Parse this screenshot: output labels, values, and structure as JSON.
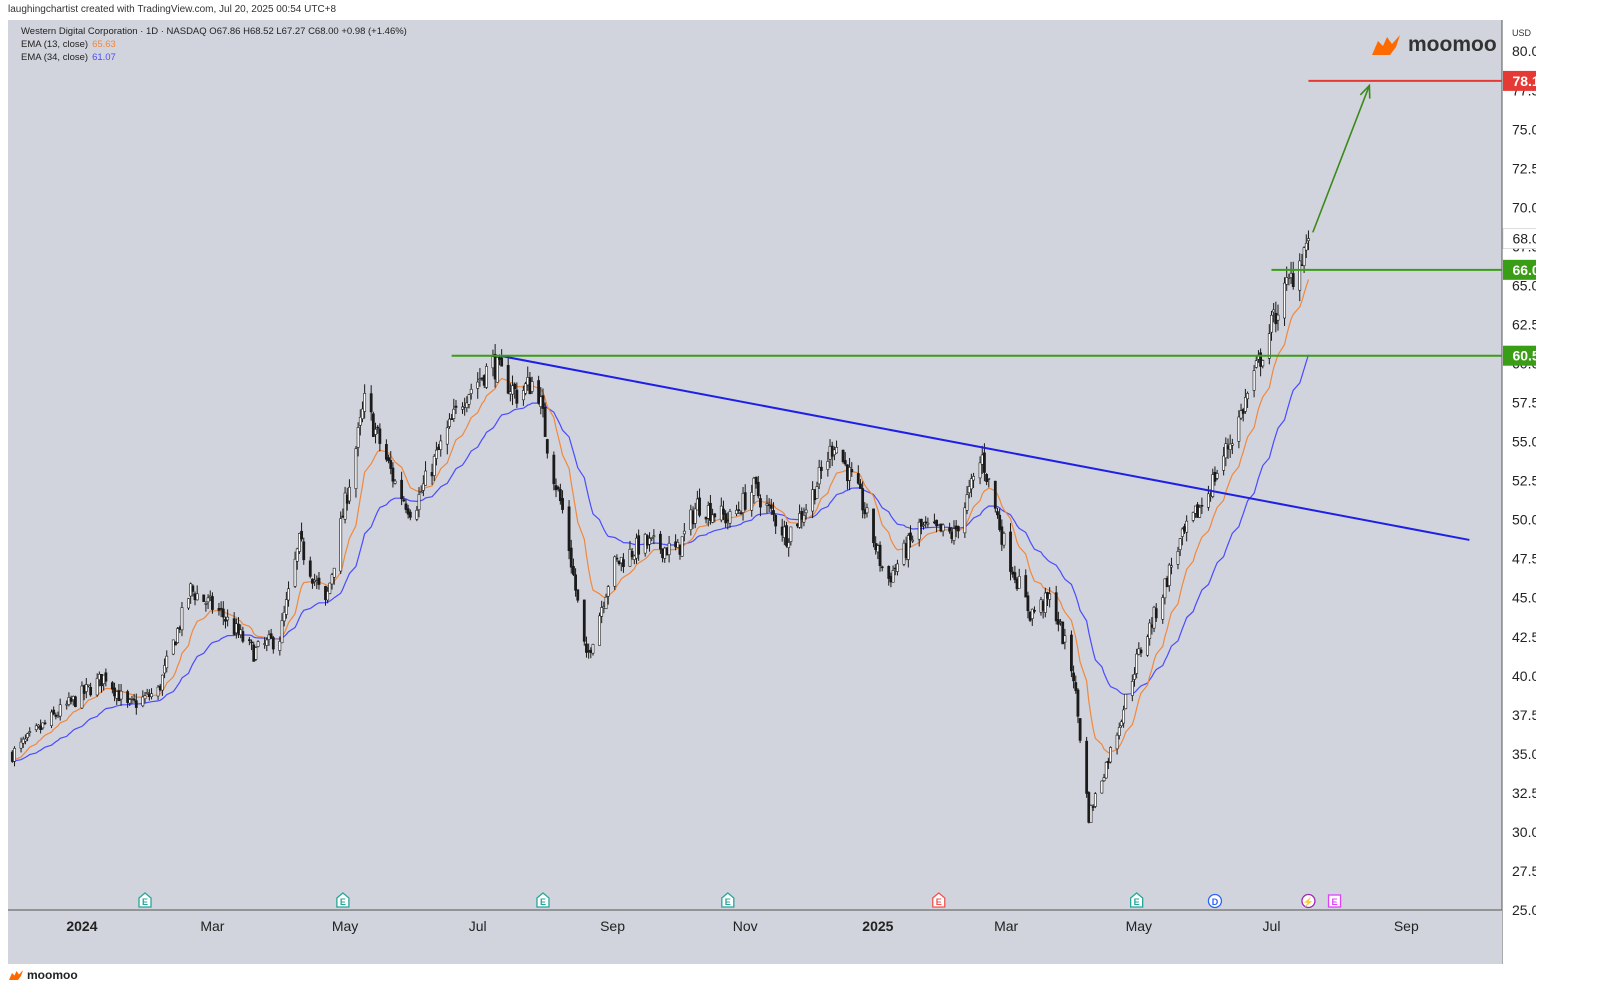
{
  "header": {
    "created_by": "laughingchartist created with TradingView.com, Jul 20, 2025 00:54 UTC+8"
  },
  "legend": {
    "symbol_line": "Western Digital Corporation · 1D · NASDAQ  O67.86  H68.52  L67.27  C68.00  +0.98 (+1.46%)",
    "ema13_label": "EMA (13, close)",
    "ema13_value": "65.63",
    "ema34_label": "EMA (34, close)",
    "ema34_value": "61.07"
  },
  "branding": {
    "top_logo": "moomoo",
    "bottom_logo": "moomoo"
  },
  "colors": {
    "background": "#d1d4dc",
    "candle": "#1a1a1a",
    "ema13": "#f0883e",
    "ema34": "#4b4bff",
    "resistance": "#e53935",
    "support": "#3a9d16",
    "trendline": "#1f1fe6",
    "target_arrow": "#3a8a1a",
    "moomoo_orange": "#ff6a00"
  },
  "chart_data": {
    "type": "candlestick",
    "currency": "USD",
    "ylim": [
      25,
      82
    ],
    "yticks": [
      25.0,
      27.5,
      30.0,
      32.5,
      35.0,
      37.5,
      40.0,
      42.5,
      45.0,
      47.5,
      50.0,
      52.5,
      55.0,
      57.5,
      60.0,
      62.5,
      65.0,
      67.5,
      70.0,
      72.5,
      75.0,
      77.5,
      80.0
    ],
    "yticks_text": [
      "25.00",
      "27.50",
      "30.00",
      "32.50",
      "35.00",
      "37.50",
      "40.00",
      "42.50",
      "45.00",
      "47.50",
      "50.00",
      "52.50",
      "55.00",
      "57.50",
      "60.00",
      "62.50",
      "65.00",
      "67.50",
      "70.00",
      "72.50",
      "75.00",
      "77.50",
      "80.00"
    ],
    "x_axis": [
      {
        "label": "2024",
        "date": "2024-01-01",
        "bold": true
      },
      {
        "label": "Mar",
        "date": "2024-03-01",
        "bold": false
      },
      {
        "label": "May",
        "date": "2024-05-01",
        "bold": false
      },
      {
        "label": "Jul",
        "date": "2024-07-01",
        "bold": false
      },
      {
        "label": "Sep",
        "date": "2024-09-01",
        "bold": false
      },
      {
        "label": "Nov",
        "date": "2024-11-01",
        "bold": false
      },
      {
        "label": "2025",
        "date": "2025-01-01",
        "bold": true
      },
      {
        "label": "Mar",
        "date": "2025-03-01",
        "bold": false
      },
      {
        "label": "May",
        "date": "2025-05-01",
        "bold": false
      },
      {
        "label": "Jul",
        "date": "2025-07-01",
        "bold": false
      },
      {
        "label": "Sep",
        "date": "2025-09-01",
        "bold": false
      }
    ],
    "x_range": [
      "2023-11-28",
      "2025-10-15"
    ],
    "price_path": [
      [
        "2023-11-30",
        35.0
      ],
      [
        "2023-12-20",
        37.5
      ],
      [
        "2024-01-12",
        40.0
      ],
      [
        "2024-01-22",
        38.0
      ],
      [
        "2024-02-05",
        39.0
      ],
      [
        "2024-02-20",
        45.5
      ],
      [
        "2024-03-05",
        44.0
      ],
      [
        "2024-03-20",
        41.5
      ],
      [
        "2024-04-01",
        42.5
      ],
      [
        "2024-04-10",
        48.5
      ],
      [
        "2024-04-22",
        44.5
      ],
      [
        "2024-05-10",
        57.5
      ],
      [
        "2024-05-25",
        52.0
      ],
      [
        "2024-06-01",
        50.5
      ],
      [
        "2024-06-15",
        55.0
      ],
      [
        "2024-06-25",
        58.0
      ],
      [
        "2024-07-08",
        60.0
      ],
      [
        "2024-07-19",
        58.0
      ],
      [
        "2024-07-28",
        59.0
      ],
      [
        "2024-08-03",
        54.0
      ],
      [
        "2024-08-10",
        50.0
      ],
      [
        "2024-08-20",
        41.0
      ],
      [
        "2024-09-01",
        47.0
      ],
      [
        "2024-09-15",
        48.5
      ],
      [
        "2024-10-01",
        48.0
      ],
      [
        "2024-10-10",
        51.0
      ],
      [
        "2024-10-25",
        50.0
      ],
      [
        "2024-11-05",
        52.0
      ],
      [
        "2024-11-20",
        49.0
      ],
      [
        "2024-11-30",
        51.0
      ],
      [
        "2024-12-12",
        55.0
      ],
      [
        "2024-12-25",
        51.0
      ],
      [
        "2025-01-05",
        46.0
      ],
      [
        "2025-01-20",
        49.5
      ],
      [
        "2025-02-05",
        49.0
      ],
      [
        "2025-02-18",
        54.0
      ],
      [
        "2025-03-01",
        48.0
      ],
      [
        "2025-03-12",
        44.0
      ],
      [
        "2025-03-22",
        45.0
      ],
      [
        "2025-04-01",
        40.0
      ],
      [
        "2025-04-08",
        31.0
      ],
      [
        "2025-04-20",
        36.0
      ],
      [
        "2025-04-30",
        41.0
      ],
      [
        "2025-05-10",
        44.5
      ],
      [
        "2025-05-18",
        48.0
      ],
      [
        "2025-06-01",
        51.5
      ],
      [
        "2025-06-15",
        56.0
      ],
      [
        "2025-06-25",
        60.0
      ],
      [
        "2025-07-05",
        64.0
      ],
      [
        "2025-07-12",
        66.0
      ],
      [
        "2025-07-18",
        68.0
      ]
    ],
    "last_close": 68.0,
    "last_close_text": "68.00",
    "price_levels": [
      {
        "name": "resistance-target",
        "value": 78.1,
        "text": "78.10",
        "start": "2025-07-18"
      },
      {
        "name": "support-upper",
        "value": 66.0,
        "text": "66.00",
        "start": "2025-07-01"
      },
      {
        "name": "support-breakout",
        "value": 60.5,
        "text": "60.50",
        "start": "2024-06-19"
      }
    ],
    "trendline": {
      "start": [
        "2024-07-11",
        60.5
      ],
      "end": [
        "2025-09-30",
        48.7
      ]
    },
    "target_arrow": {
      "start": [
        "2025-07-20",
        68.4
      ],
      "end": [
        "2025-08-15",
        77.8
      ]
    },
    "events": [
      {
        "date": "2024-01-30",
        "kind": "E",
        "color": "#26a69a",
        "shape": "house"
      },
      {
        "date": "2024-04-30",
        "kind": "E",
        "color": "#26a69a",
        "shape": "house"
      },
      {
        "date": "2024-07-31",
        "kind": "E",
        "color": "#26a69a",
        "shape": "house"
      },
      {
        "date": "2024-10-24",
        "kind": "E",
        "color": "#26a69a",
        "shape": "house"
      },
      {
        "date": "2025-01-29",
        "kind": "E",
        "color": "#ef5350",
        "shape": "house"
      },
      {
        "date": "2025-04-30",
        "kind": "E",
        "color": "#26a69a",
        "shape": "house"
      },
      {
        "date": "2025-06-05",
        "kind": "D",
        "color": "#2962ff",
        "shape": "circle"
      },
      {
        "date": "2025-07-18",
        "kind": "⚡",
        "color": "#9c27b0",
        "shape": "circle"
      },
      {
        "date": "2025-07-30",
        "kind": "E",
        "color": "#e040fb",
        "shape": "square"
      }
    ]
  }
}
